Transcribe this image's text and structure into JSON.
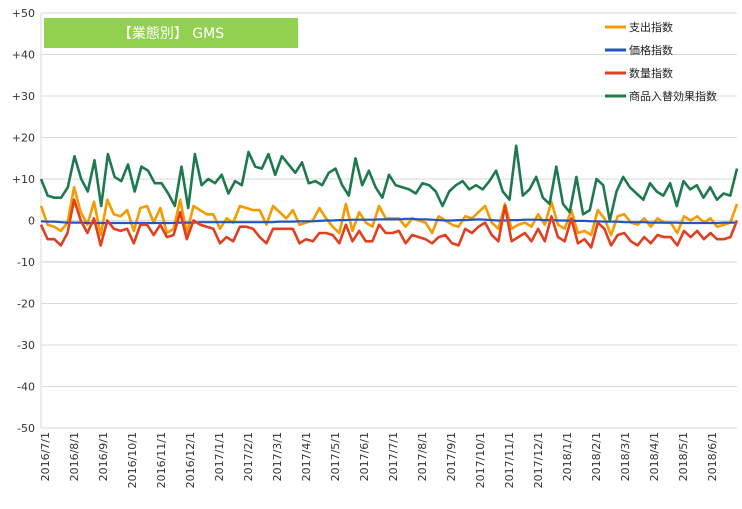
{
  "chart_data": {
    "type": "line",
    "title": "【業態別】 GMS",
    "ylim": [
      -50,
      50
    ],
    "y_ticks": [
      "+50",
      "+40",
      "+30",
      "+20",
      "+10",
      "0",
      "-10",
      "-20",
      "-30",
      "-40",
      "-50"
    ],
    "x_tick_labels": [
      "2016/7/1",
      "2016/8/1",
      "2016/9/1",
      "2016/10/1",
      "2016/11/1",
      "2016/12/1",
      "2017/1/1",
      "2017/2/1",
      "2017/3/1",
      "2017/4/1",
      "2017/5/1",
      "2017/6/1",
      "2017/7/1",
      "2017/8/1",
      "2017/9/1",
      "2017/10/1",
      "2017/11/1",
      "2017/12/1",
      "2018/1/1",
      "2018/2/1",
      "2018/3/1",
      "2018/4/1",
      "2018/5/1",
      "2018/6/1"
    ],
    "grid": true,
    "legend_position": "top-right",
    "series": [
      {
        "name": "支出指数",
        "color": "#F59B00",
        "values": [
          3.5,
          -1.0,
          -1.5,
          -2.5,
          -0.5,
          8.0,
          2.0,
          -1.0,
          4.5,
          -3.5,
          5.0,
          1.5,
          1.0,
          2.5,
          -2.5,
          3.0,
          3.5,
          -0.5,
          3.0,
          -3.0,
          -2.0,
          5.0,
          -3.0,
          3.5,
          2.5,
          1.5,
          1.5,
          -2.0,
          0.5,
          -0.5,
          3.5,
          3.0,
          2.5,
          2.5,
          -1.0,
          3.5,
          2.0,
          0.5,
          2.5,
          -1.0,
          -0.5,
          0.0,
          3.0,
          0.5,
          -1.5,
          -3.0,
          4.0,
          -2.5,
          2.0,
          -0.5,
          -1.5,
          3.5,
          0.5,
          0.5,
          0.5,
          -1.5,
          0.5,
          0.0,
          -0.5,
          -3.0,
          1.0,
          0.0,
          -1.0,
          -1.5,
          1.0,
          0.5,
          2.0,
          3.5,
          -0.5,
          -2.0,
          4.0,
          -2.0,
          -1.0,
          -0.5,
          -1.5,
          1.5,
          -1.0,
          4.5,
          -1.0,
          -2.0,
          2.5,
          -3.0,
          -2.5,
          -3.5,
          2.5,
          0.5,
          -3.5,
          1.0,
          1.5,
          -0.5,
          -1.0,
          0.5,
          -1.5,
          0.5,
          -0.5,
          -0.5,
          -3.0,
          1.0,
          0.0,
          1.0,
          -0.5,
          0.5,
          -1.5,
          -1.0,
          -0.5,
          4.0
        ]
      },
      {
        "name": "価格指数",
        "color": "#2255C0",
        "values": [
          -0.2,
          -0.3,
          -0.3,
          -0.4,
          -0.5,
          -0.5,
          -0.5,
          -0.6,
          -0.6,
          -0.6,
          -0.6,
          -0.6,
          -0.6,
          -0.6,
          -0.6,
          -0.6,
          -0.6,
          -0.6,
          -0.6,
          -0.6,
          -0.6,
          -0.5,
          -0.5,
          -0.5,
          -0.4,
          -0.4,
          -0.4,
          -0.4,
          -0.4,
          -0.4,
          -0.4,
          -0.4,
          -0.4,
          -0.4,
          -0.4,
          -0.4,
          -0.3,
          -0.3,
          -0.3,
          -0.2,
          -0.2,
          -0.2,
          -0.1,
          0.0,
          0.0,
          0.1,
          0.1,
          0.2,
          0.2,
          0.2,
          0.2,
          0.3,
          0.3,
          0.3,
          0.3,
          0.4,
          0.4,
          0.3,
          0.3,
          0.2,
          0.1,
          0.0,
          0.0,
          0.1,
          0.1,
          0.2,
          0.3,
          0.2,
          0.1,
          0.0,
          0.0,
          0.1,
          0.1,
          0.2,
          0.2,
          0.2,
          0.1,
          0.1,
          0.0,
          0.0,
          -0.1,
          -0.1,
          -0.1,
          -0.2,
          -0.2,
          -0.3,
          -0.3,
          -0.3,
          -0.4,
          -0.4,
          -0.4,
          -0.4,
          -0.5,
          -0.5,
          -0.5,
          -0.5,
          -0.5,
          -0.6,
          -0.6,
          -0.6,
          -0.6,
          -0.6,
          -0.6,
          -0.5,
          -0.5,
          -0.5
        ]
      },
      {
        "name": "数量指数",
        "color": "#E04020",
        "values": [
          -1.0,
          -4.5,
          -4.5,
          -6.0,
          -3.0,
          5.0,
          0.0,
          -3.0,
          0.5,
          -6.0,
          0.0,
          -2.0,
          -2.5,
          -2.0,
          -5.5,
          -1.0,
          -1.0,
          -3.5,
          -1.0,
          -4.0,
          -3.5,
          2.0,
          -4.5,
          0.0,
          -1.0,
          -1.5,
          -2.0,
          -5.5,
          -4.0,
          -5.0,
          -1.5,
          -1.5,
          -2.0,
          -4.0,
          -5.5,
          -2.0,
          -2.0,
          -2.0,
          -2.0,
          -5.5,
          -4.5,
          -5.0,
          -3.0,
          -3.0,
          -3.5,
          -5.5,
          -1.0,
          -5.0,
          -2.5,
          -5.0,
          -5.0,
          -1.0,
          -3.0,
          -3.0,
          -2.5,
          -5.5,
          -3.5,
          -4.0,
          -4.5,
          -5.5,
          -4.0,
          -3.5,
          -5.5,
          -6.0,
          -2.0,
          -3.0,
          -1.5,
          -0.5,
          -3.5,
          -5.0,
          3.5,
          -5.0,
          -4.0,
          -3.0,
          -5.0,
          -2.0,
          -5.0,
          1.0,
          -4.0,
          -5.0,
          0.5,
          -5.5,
          -4.5,
          -6.5,
          -0.5,
          -2.0,
          -6.0,
          -3.5,
          -3.0,
          -5.0,
          -6.0,
          -4.0,
          -5.5,
          -3.5,
          -4.0,
          -4.0,
          -6.0,
          -2.5,
          -4.0,
          -2.5,
          -4.5,
          -3.0,
          -4.5,
          -4.5,
          -4.0,
          0.0
        ]
      },
      {
        "name": "商品入替効果指数",
        "color": "#1E7A4E",
        "values": [
          10.0,
          6.0,
          5.5,
          5.5,
          8.0,
          15.5,
          10.0,
          7.0,
          14.5,
          3.5,
          16.0,
          10.5,
          9.5,
          13.5,
          7.0,
          13.0,
          12.0,
          9.0,
          9.0,
          6.5,
          3.5,
          13.0,
          3.0,
          16.0,
          8.5,
          10.0,
          9.0,
          11.0,
          6.5,
          9.5,
          8.5,
          16.5,
          13.0,
          12.5,
          16.0,
          11.0,
          15.5,
          13.5,
          11.5,
          14.0,
          9.0,
          9.5,
          8.5,
          11.5,
          12.5,
          8.5,
          6.0,
          15.0,
          8.5,
          12.0,
          8.0,
          5.5,
          11.0,
          8.5,
          8.0,
          7.5,
          6.5,
          9.0,
          8.5,
          7.0,
          3.5,
          7.0,
          8.5,
          9.5,
          7.5,
          8.5,
          7.5,
          9.5,
          12.0,
          7.0,
          5.0,
          18.0,
          6.0,
          7.5,
          10.5,
          5.5,
          4.0,
          13.0,
          4.0,
          2.0,
          10.5,
          1.5,
          2.5,
          10.0,
          8.5,
          0.0,
          7.0,
          10.5,
          8.0,
          6.5,
          5.0,
          9.0,
          7.0,
          6.0,
          9.0,
          3.5,
          9.5,
          7.5,
          8.5,
          5.5,
          8.0,
          5.0,
          6.5,
          6.0,
          12.5
        ]
      }
    ]
  }
}
